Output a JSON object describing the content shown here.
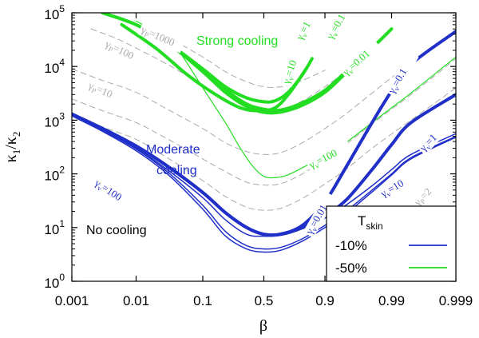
{
  "chart_data": {
    "type": "line",
    "xlabel": "β",
    "ylabel": "κ1/κ2",
    "xscale": "logit",
    "yscale": "log",
    "xlim": [
      0.001,
      0.999
    ],
    "ylim": [
      1,
      100000
    ],
    "x_ticks": [
      "0.001",
      "0.01",
      "0.1",
      "0.5",
      "0.9",
      "0.99",
      "0.999"
    ],
    "x_tick_values": [
      0.001,
      0.01,
      0.1,
      0.5,
      0.9,
      0.99,
      0.999
    ],
    "y_ticks": [
      {
        "base": "10",
        "exp": "0",
        "value": 1
      },
      {
        "base": "10",
        "exp": "1",
        "value": 10
      },
      {
        "base": "10",
        "exp": "2",
        "value": 100
      },
      {
        "base": "10",
        "exp": "3",
        "value": 1000
      },
      {
        "base": "10",
        "exp": "4",
        "value": 10000
      },
      {
        "base": "10",
        "exp": "5",
        "value": 100000
      }
    ],
    "colors": {
      "blue": "#1f2fc8",
      "green": "#22dd22",
      "gray": "#aaaaaa"
    },
    "annotations": {
      "strong": "Strong cooling",
      "moderate_1": "Moderate",
      "moderate_2": "cooling",
      "none": "No cooling"
    },
    "curve_labels": [
      {
        "sym": "γ",
        "sub": "P",
        "eq": "=1000",
        "color": "gray"
      },
      {
        "sym": "γ",
        "sub": "P",
        "eq": "=100",
        "color": "gray"
      },
      {
        "sym": "γ",
        "sub": "P",
        "eq": "=10",
        "color": "gray"
      },
      {
        "sym": "γ",
        "sub": "P",
        "eq": "=2",
        "color": "gray"
      },
      {
        "sym": "γ",
        "sub": "v",
        "eq": "=1",
        "color": "green"
      },
      {
        "sym": "γ",
        "sub": "v",
        "eq": "=0.1",
        "color": "green"
      },
      {
        "sym": "γ",
        "sub": "v",
        "eq": "=10",
        "color": "green"
      },
      {
        "sym": "γ",
        "sub": "v",
        "eq": "=0.01",
        "color": "green"
      },
      {
        "sym": "γ",
        "sub": "v",
        "eq": "=100",
        "color": "green"
      },
      {
        "sym": "γ",
        "sub": "v",
        "eq": "=0.1",
        "color": "blue"
      },
      {
        "sym": "γ",
        "sub": "v",
        "eq": "=1",
        "color": "blue"
      },
      {
        "sym": "γ",
        "sub": "v",
        "eq": "=10",
        "color": "blue"
      },
      {
        "sym": "γ",
        "sub": "v",
        "eq": "=0.01",
        "color": "blue"
      },
      {
        "sym": "γ",
        "sub": "v",
        "eq": "=100",
        "color": "blue"
      }
    ],
    "legend": {
      "title": "T",
      "title_sub": "skin",
      "position": "bottom-right",
      "entries": [
        {
          "label": "-10%",
          "color": "blue"
        },
        {
          "label": "-50%",
          "color": "green"
        }
      ]
    },
    "series": [
      {
        "name": "γP=1000",
        "color": "gray",
        "style": "dashed",
        "x": [
          0.003,
          0.01,
          0.03,
          0.1,
          0.2,
          0.35,
          0.5,
          0.65,
          0.8,
          0.9
        ],
        "y": [
          100000,
          62000,
          35000,
          15000,
          8000,
          5200,
          4200,
          4200,
          5500,
          8500
        ]
      },
      {
        "name": "γP=100",
        "color": "gray",
        "style": "dashed",
        "x": [
          0.002,
          0.005,
          0.01,
          0.03,
          0.1,
          0.2,
          0.35,
          0.5,
          0.65,
          0.8,
          0.9,
          0.95,
          0.98
        ],
        "y": [
          50000,
          33000,
          22000,
          11000,
          4500,
          2400,
          1600,
          1400,
          1500,
          2300,
          4200,
          8000,
          20000
        ]
      },
      {
        "name": "γP=100 lower",
        "color": "gray",
        "style": "dashed",
        "x": [
          0.001,
          0.003,
          0.01,
          0.03,
          0.1,
          0.2,
          0.35,
          0.5,
          0.65,
          0.8,
          0.9,
          0.95,
          0.98,
          0.995
        ],
        "y": [
          9000,
          5500,
          3300,
          1600,
          700,
          380,
          260,
          230,
          250,
          380,
          700,
          1300,
          3200,
          12000
        ]
      },
      {
        "name": "γP=10",
        "color": "gray",
        "style": "dashed",
        "x": [
          0.001,
          0.003,
          0.01,
          0.03,
          0.1,
          0.2,
          0.35,
          0.5,
          0.65,
          0.8,
          0.9,
          0.95,
          0.98,
          0.995,
          0.999
        ],
        "y": [
          2500,
          1500,
          900,
          450,
          190,
          110,
          70,
          62,
          66,
          100,
          190,
          350,
          850,
          3000,
          14000
        ]
      },
      {
        "name": "γP=2",
        "color": "gray",
        "style": "dashed",
        "x": [
          0.001,
          0.003,
          0.01,
          0.03,
          0.1,
          0.2,
          0.35,
          0.5,
          0.65,
          0.8,
          0.9,
          0.95,
          0.98,
          0.995,
          0.999
        ],
        "y": [
          1300,
          750,
          440,
          200,
          75,
          38,
          24,
          21,
          23,
          35,
          65,
          120,
          300,
          1000,
          4000
        ]
      },
      {
        "name": "green γv=1",
        "color": "green",
        "width": 4,
        "x": [
          0.003,
          0.01,
          0.03,
          0.1,
          0.2,
          0.35,
          0.5,
          0.6,
          0.7,
          0.8,
          0.85
        ],
        "y": [
          100000,
          60000,
          28000,
          9000,
          4200,
          2600,
          2200,
          2300,
          3200,
          7000,
          14000
        ]
      },
      {
        "name": "green γv=0.1",
        "color": "green",
        "width": 4,
        "x": [
          0.003,
          0.01,
          0.03,
          0.1,
          0.2,
          0.35,
          0.5,
          0.65,
          0.8,
          0.9,
          0.95,
          0.97
        ],
        "y": [
          100000,
          60000,
          28000,
          8500,
          3700,
          2000,
          1600,
          1550,
          2100,
          3600,
          8000,
          15000
        ]
      },
      {
        "name": "green γv=10",
        "color": "green",
        "width": 4,
        "x": [
          0.006,
          0.02,
          0.06,
          0.15,
          0.3,
          0.45,
          0.6,
          0.72,
          0.82
        ],
        "y": [
          60000,
          22000,
          7000,
          3000,
          1700,
          1500,
          1700,
          3300,
          9000
        ]
      },
      {
        "name": "green γv=0.01",
        "color": "green",
        "width": 4,
        "x": [
          0.003,
          0.01,
          0.03,
          0.1,
          0.2,
          0.35,
          0.5,
          0.65,
          0.8,
          0.9,
          0.95,
          0.98,
          0.99
        ],
        "y": [
          100000,
          60000,
          28000,
          8000,
          3300,
          1800,
          1400,
          1420,
          1900,
          3300,
          7500,
          22000,
          50000
        ]
      },
      {
        "name": "green γv=100",
        "color": "green",
        "width": 1.2,
        "x": [
          0.01,
          0.03,
          0.05,
          0.1,
          0.2,
          0.3,
          0.4,
          0.5,
          0.6,
          0.7,
          0.8,
          0.9,
          0.95,
          0.98,
          0.99,
          0.995,
          0.999
        ],
        "y": [
          70000,
          33000,
          16000,
          4000,
          900,
          300,
          140,
          90,
          85,
          95,
          130,
          220,
          380,
          900,
          1700,
          3200,
          15000
        ]
      },
      {
        "name": "blue γv=0.1",
        "color": "blue",
        "width": 4,
        "x": [
          0.001,
          0.003,
          0.01,
          0.03,
          0.1,
          0.2,
          0.35,
          0.5,
          0.65,
          0.8,
          0.9,
          0.95,
          0.98,
          0.99,
          0.995,
          0.999
        ],
        "y": [
          1300,
          700,
          330,
          140,
          45,
          19,
          10,
          7.5,
          7.6,
          11,
          30,
          130,
          900,
          3500,
          11000,
          45000
        ]
      },
      {
        "name": "blue γv=1",
        "color": "blue",
        "width": 4,
        "x": [
          0.001,
          0.003,
          0.01,
          0.03,
          0.1,
          0.2,
          0.35,
          0.5,
          0.65,
          0.8,
          0.9,
          0.95,
          0.98,
          0.99,
          0.995,
          0.999
        ],
        "y": [
          1300,
          700,
          330,
          140,
          45,
          19,
          10,
          7.5,
          7.5,
          10,
          17,
          32,
          120,
          350,
          900,
          3000
        ]
      },
      {
        "name": "blue γv=10",
        "color": "blue",
        "width": 1.5,
        "x": [
          0.001,
          0.003,
          0.01,
          0.03,
          0.1,
          0.2,
          0.35,
          0.5,
          0.65,
          0.8,
          0.9,
          0.95,
          0.98,
          0.99,
          0.995,
          0.999
        ],
        "y": [
          1250,
          650,
          300,
          120,
          36,
          14,
          7.5,
          6.9,
          7.2,
          9.5,
          15,
          26,
          60,
          120,
          230,
          560
        ]
      },
      {
        "name": "blue γv=100",
        "color": "blue",
        "width": 1.5,
        "x": [
          0.001,
          0.003,
          0.01,
          0.03,
          0.1,
          0.2,
          0.35,
          0.5,
          0.65,
          0.8,
          0.9,
          0.95,
          0.98,
          0.99,
          0.995,
          0.999
        ],
        "y": [
          1250,
          650,
          290,
          110,
          26,
          8.5,
          4.6,
          4.0,
          4.3,
          6.2,
          11,
          20,
          50,
          100,
          200,
          500
        ]
      },
      {
        "name": "blue γv=100 lower",
        "color": "blue",
        "width": 1.5,
        "x": [
          0.001,
          0.003,
          0.01,
          0.03,
          0.1,
          0.2,
          0.35,
          0.5,
          0.65,
          0.8,
          0.9,
          0.95,
          0.98,
          0.99,
          0.995,
          0.999
        ],
        "y": [
          1200,
          620,
          270,
          100,
          22,
          7,
          4.0,
          3.5,
          3.8,
          5.6,
          10,
          18,
          46,
          95,
          190,
          480
        ]
      }
    ]
  }
}
